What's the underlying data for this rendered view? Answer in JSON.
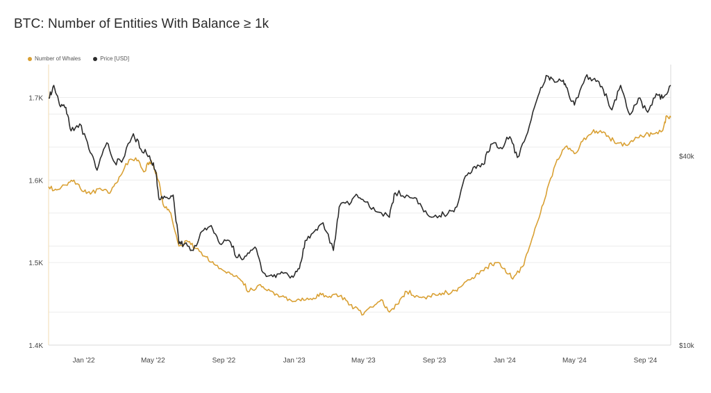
{
  "colors": {
    "whales": "#d9a033",
    "price": "#2b2b2b",
    "grid": "#ececec"
  },
  "chart_data": {
    "type": "line",
    "title": "BTC: Number of Entities With Balance ≥ 1k",
    "x_ticks": [
      "Jan '22",
      "May '22",
      "Sep '22",
      "Jan '23",
      "May '23",
      "Sep '23",
      "Jan '24",
      "May '24",
      "Sep '24"
    ],
    "x_range": [
      "2021-11-01",
      "2024-10-15"
    ],
    "y_left": {
      "ticks": [
        "1.4K",
        "1.5K",
        "1.6K",
        "1.7K"
      ],
      "values": [
        1400,
        1500,
        1600,
        1700
      ],
      "range": [
        1400,
        1740
      ]
    },
    "y_right": {
      "ticks": [
        "$10k",
        "$40k"
      ],
      "values": [
        10000,
        40000
      ],
      "scale": "log",
      "range": [
        10000,
        78000
      ]
    },
    "grid": true,
    "legend_position": "top-left",
    "series": [
      {
        "name": "Number of Whales",
        "axis": "left",
        "points": [
          [
            "2021-11-01",
            1592
          ],
          [
            "2021-11-15",
            1588
          ],
          [
            "2021-12-01",
            1594
          ],
          [
            "2021-12-15",
            1600
          ],
          [
            "2022-01-01",
            1586
          ],
          [
            "2022-01-15",
            1585
          ],
          [
            "2022-02-01",
            1588
          ],
          [
            "2022-02-15",
            1584
          ],
          [
            "2022-03-01",
            1598
          ],
          [
            "2022-03-15",
            1620
          ],
          [
            "2022-04-01",
            1627
          ],
          [
            "2022-04-15",
            1610
          ],
          [
            "2022-04-25",
            1622
          ],
          [
            "2022-05-01",
            1620
          ],
          [
            "2022-05-10",
            1600
          ],
          [
            "2022-05-20",
            1568
          ],
          [
            "2022-06-01",
            1560
          ],
          [
            "2022-06-15",
            1520
          ],
          [
            "2022-07-01",
            1525
          ],
          [
            "2022-07-15",
            1517
          ],
          [
            "2022-08-01",
            1507
          ],
          [
            "2022-08-15",
            1498
          ],
          [
            "2022-09-01",
            1490
          ],
          [
            "2022-09-15",
            1486
          ],
          [
            "2022-10-01",
            1478
          ],
          [
            "2022-10-15",
            1465
          ],
          [
            "2022-11-01",
            1473
          ],
          [
            "2022-11-15",
            1466
          ],
          [
            "2022-12-01",
            1462
          ],
          [
            "2022-12-15",
            1458
          ],
          [
            "2023-01-01",
            1453
          ],
          [
            "2023-01-15",
            1457
          ],
          [
            "2023-02-01",
            1455
          ],
          [
            "2023-02-15",
            1463
          ],
          [
            "2023-03-01",
            1458
          ],
          [
            "2023-03-15",
            1462
          ],
          [
            "2023-04-01",
            1454
          ],
          [
            "2023-04-15",
            1445
          ],
          [
            "2023-05-01",
            1437
          ],
          [
            "2023-05-15",
            1446
          ],
          [
            "2023-06-01",
            1455
          ],
          [
            "2023-06-15",
            1440
          ],
          [
            "2023-07-01",
            1450
          ],
          [
            "2023-07-15",
            1465
          ],
          [
            "2023-08-01",
            1460
          ],
          [
            "2023-08-15",
            1458
          ],
          [
            "2023-09-01",
            1462
          ],
          [
            "2023-09-15",
            1463
          ],
          [
            "2023-10-01",
            1464
          ],
          [
            "2023-10-15",
            1470
          ],
          [
            "2023-11-01",
            1479
          ],
          [
            "2023-11-15",
            1487
          ],
          [
            "2023-12-01",
            1494
          ],
          [
            "2023-12-15",
            1500
          ],
          [
            "2024-01-01",
            1493
          ],
          [
            "2024-01-15",
            1480
          ],
          [
            "2024-02-01",
            1495
          ],
          [
            "2024-02-15",
            1523
          ],
          [
            "2024-03-01",
            1555
          ],
          [
            "2024-03-15",
            1590
          ],
          [
            "2024-04-01",
            1625
          ],
          [
            "2024-04-15",
            1640
          ],
          [
            "2024-05-01",
            1632
          ],
          [
            "2024-05-15",
            1647
          ],
          [
            "2024-06-01",
            1658
          ],
          [
            "2024-06-15",
            1660
          ],
          [
            "2024-07-01",
            1651
          ],
          [
            "2024-07-15",
            1645
          ],
          [
            "2024-08-01",
            1642
          ],
          [
            "2024-08-15",
            1652
          ],
          [
            "2024-09-01",
            1655
          ],
          [
            "2024-09-15",
            1656
          ],
          [
            "2024-10-01",
            1660
          ],
          [
            "2024-10-08",
            1678
          ],
          [
            "2024-10-15",
            1676
          ]
        ]
      },
      {
        "name": "Price [USD]",
        "axis": "right",
        "points": [
          [
            "2021-11-01",
            61000
          ],
          [
            "2021-11-10",
            67000
          ],
          [
            "2021-11-20",
            58000
          ],
          [
            "2021-12-01",
            57000
          ],
          [
            "2021-12-10",
            48000
          ],
          [
            "2021-12-25",
            50500
          ],
          [
            "2022-01-10",
            42000
          ],
          [
            "2022-01-24",
            36000
          ],
          [
            "2022-02-10",
            44000
          ],
          [
            "2022-02-24",
            38000
          ],
          [
            "2022-03-10",
            39000
          ],
          [
            "2022-03-28",
            47000
          ],
          [
            "2022-04-10",
            42000
          ],
          [
            "2022-04-25",
            40000
          ],
          [
            "2022-05-05",
            36000
          ],
          [
            "2022-05-12",
            29000
          ],
          [
            "2022-05-25",
            29500
          ],
          [
            "2022-06-05",
            30000
          ],
          [
            "2022-06-15",
            21000
          ],
          [
            "2022-06-25",
            21000
          ],
          [
            "2022-07-10",
            20000
          ],
          [
            "2022-07-25",
            23000
          ],
          [
            "2022-08-10",
            24000
          ],
          [
            "2022-08-25",
            21000
          ],
          [
            "2022-09-10",
            21500
          ],
          [
            "2022-09-25",
            19000
          ],
          [
            "2022-10-10",
            19200
          ],
          [
            "2022-10-25",
            20500
          ],
          [
            "2022-11-08",
            17000
          ],
          [
            "2022-11-25",
            16500
          ],
          [
            "2022-12-10",
            17100
          ],
          [
            "2022-12-28",
            16600
          ],
          [
            "2023-01-10",
            17500
          ],
          [
            "2023-01-20",
            21500
          ],
          [
            "2023-02-05",
            23000
          ],
          [
            "2023-02-20",
            24500
          ],
          [
            "2023-03-10",
            20000
          ],
          [
            "2023-03-20",
            27500
          ],
          [
            "2023-04-10",
            28500
          ],
          [
            "2023-04-20",
            30000
          ],
          [
            "2023-05-05",
            28500
          ],
          [
            "2023-05-25",
            26500
          ],
          [
            "2023-06-15",
            25500
          ],
          [
            "2023-06-25",
            30500
          ],
          [
            "2023-07-15",
            30000
          ],
          [
            "2023-08-01",
            29300
          ],
          [
            "2023-08-20",
            26000
          ],
          [
            "2023-09-10",
            25800
          ],
          [
            "2023-09-25",
            26300
          ],
          [
            "2023-10-10",
            27500
          ],
          [
            "2023-10-25",
            34500
          ],
          [
            "2023-11-10",
            37000
          ],
          [
            "2023-11-25",
            37500
          ],
          [
            "2023-12-08",
            43500
          ],
          [
            "2023-12-25",
            42500
          ],
          [
            "2024-01-10",
            46000
          ],
          [
            "2024-01-23",
            39500
          ],
          [
            "2024-02-10",
            47500
          ],
          [
            "2024-02-28",
            62000
          ],
          [
            "2024-03-13",
            72000
          ],
          [
            "2024-03-25",
            70000
          ],
          [
            "2024-04-10",
            69000
          ],
          [
            "2024-04-20",
            64000
          ],
          [
            "2024-05-01",
            58000
          ],
          [
            "2024-05-20",
            71000
          ],
          [
            "2024-06-05",
            70500
          ],
          [
            "2024-06-20",
            65000
          ],
          [
            "2024-07-05",
            56000
          ],
          [
            "2024-07-20",
            67000
          ],
          [
            "2024-08-05",
            54000
          ],
          [
            "2024-08-20",
            61000
          ],
          [
            "2024-09-05",
            55000
          ],
          [
            "2024-09-20",
            63000
          ],
          [
            "2024-10-01",
            61000
          ],
          [
            "2024-10-15",
            67000
          ]
        ]
      }
    ]
  }
}
